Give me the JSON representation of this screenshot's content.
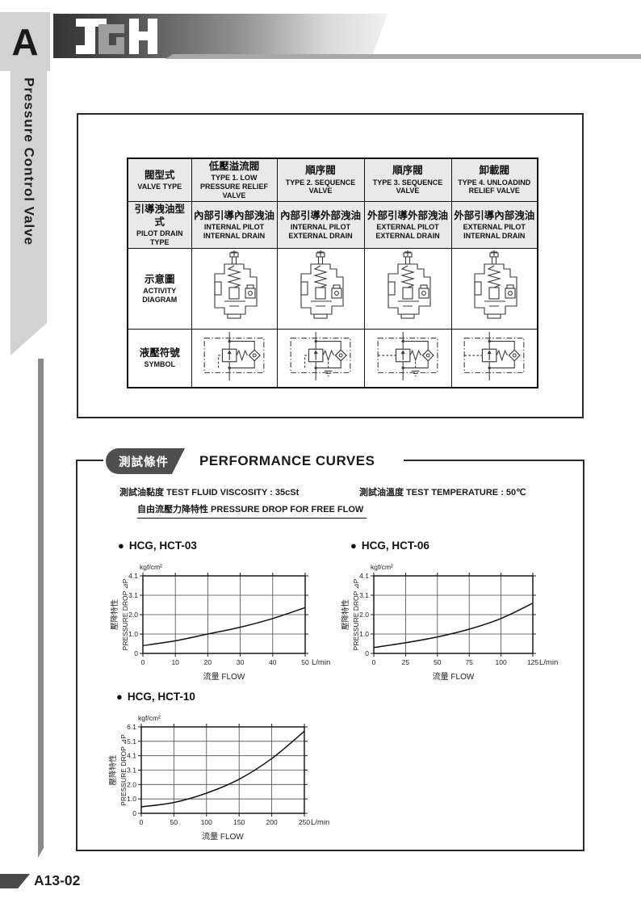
{
  "colors": {
    "accent_dark": "#4a4a4a",
    "badge_fill": "#4f4f4f",
    "table_header_fill": "#e9e9e9",
    "ribbon_fill": "#d2d2d2",
    "rule_gray": "#8a8a8a",
    "line_color": "#111111"
  },
  "header": {
    "section_letter": "A",
    "logo_text": "JGH"
  },
  "sidebar": {
    "title": "Pressure Control Valve"
  },
  "valve_table": {
    "row_headers": [
      {
        "zh": "閥型式",
        "en": "VALVE TYPE"
      },
      {
        "zh": "引導洩油型式",
        "en": "PILOT DRAIN TYPE"
      },
      {
        "zh": "示意圖",
        "en": "ACTIVITY DIAGRAM"
      },
      {
        "zh": "液壓符號",
        "en": "SYMBOL"
      }
    ],
    "columns": [
      {
        "type_zh": "低壓溢流閥",
        "type_en": "TYPE 1. LOW PRESSURE RELIEF VALVE",
        "drain_zh": "內部引導內部洩油",
        "drain_en": "INTERNAL PILOT INTERNAL DRAIN",
        "external_pilot": false,
        "external_drain": false
      },
      {
        "type_zh": "順序閥",
        "type_en": "TYPE 2. SEQUENCE VALVE",
        "drain_zh": "內部引導外部洩油",
        "drain_en": "INTERNAL PILOT EXTERNAL DRAIN",
        "external_pilot": false,
        "external_drain": true
      },
      {
        "type_zh": "順序閥",
        "type_en": "TYPE 3. SEQUENCE VALVE",
        "drain_zh": "外部引導外部洩油",
        "drain_en": "EXTERNAL PILOT EXTERNAL DRAIN",
        "external_pilot": true,
        "external_drain": true
      },
      {
        "type_zh": "卸載閥",
        "type_en": "TYPE 4. UNLOADIND RELIEF VALVE",
        "drain_zh": "外部引導內部洩油",
        "drain_en": "EXTERNAL PILOT INTERNAL DRAIN",
        "external_pilot": true,
        "external_drain": false
      }
    ]
  },
  "performance": {
    "badge": "測試條件",
    "title": "PERFORMANCE CURVES",
    "bullet": "●",
    "viscosity": "測試油黏度  TEST FLUID VISCOSITY : 35cSt",
    "temperature": "測試油溫度  TEST TEMPERATURE : 50℃",
    "subtitle": "自由流壓力降特性 PRESSURE DROP FOR FREE FLOW"
  },
  "chart_data": [
    {
      "type": "line",
      "title": "HCG, HCT-03",
      "y_unit": "kgf/cm²",
      "ylabel_zh": "壓降特性",
      "ylabel_en": "PRESSURE DROP ⊿P",
      "xlabel": "流量 FLOW",
      "x_unit": "L/min",
      "xlim": [
        0,
        50
      ],
      "x_ticks": [
        0,
        10,
        20,
        30,
        40,
        50
      ],
      "y_tick_labels": [
        "0",
        "1.0",
        "2.0",
        "3.1",
        "4.1"
      ],
      "y_tick_values": [
        0,
        1.0,
        2.0,
        3.1,
        4.1
      ],
      "x": [
        0,
        10,
        20,
        30,
        40,
        50
      ],
      "y": [
        0.4,
        0.65,
        1.0,
        1.35,
        1.8,
        2.4
      ],
      "grid": true,
      "legend": false
    },
    {
      "type": "line",
      "title": "HCG, HCT-06",
      "y_unit": "kgf/cm²",
      "ylabel_zh": "壓降特性",
      "ylabel_en": "PRESSURE DROP ⊿P",
      "xlabel": "流量 FLOW",
      "x_unit": "L/min",
      "xlim": [
        0,
        125
      ],
      "x_ticks": [
        0,
        25,
        50,
        75,
        100,
        125
      ],
      "y_tick_labels": [
        "0",
        "1.0",
        "2.0",
        "3.1",
        "4.1"
      ],
      "y_tick_values": [
        0,
        1.0,
        2.0,
        3.1,
        4.1
      ],
      "x": [
        0,
        25,
        50,
        75,
        100,
        125
      ],
      "y": [
        0.3,
        0.55,
        0.85,
        1.25,
        1.8,
        2.65
      ],
      "grid": true,
      "legend": false
    },
    {
      "type": "line",
      "title": "HCG, HCT-10",
      "y_unit": "kgf/cm²",
      "ylabel_zh": "壓降特性",
      "ylabel_en": "PRESSURE DROP ⊿P",
      "xlabel": "流量 FLOW",
      "x_unit": "L/min",
      "xlim": [
        0,
        250
      ],
      "x_ticks": [
        0,
        50,
        100,
        150,
        200,
        250
      ],
      "y_tick_labels": [
        "0",
        "1.0",
        "2.0",
        "3.1",
        "4.1",
        "5.1",
        "6.1"
      ],
      "y_tick_values": [
        0,
        1.0,
        2.0,
        3.1,
        4.1,
        5.1,
        6.1
      ],
      "x": [
        0,
        50,
        100,
        150,
        200,
        250
      ],
      "y": [
        0.45,
        0.75,
        1.4,
        2.4,
        3.9,
        5.8
      ],
      "grid": true,
      "legend": false
    }
  ],
  "footer": {
    "page_number": "A13-02"
  }
}
